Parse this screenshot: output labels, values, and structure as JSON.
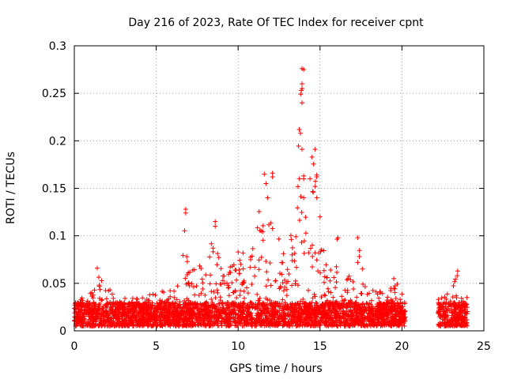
{
  "chart_data": {
    "type": "scatter",
    "title": "Day 216 of 2023, Rate Of TEC Index for receiver cpnt",
    "xlabel": "GPS time / hours",
    "ylabel": "ROTI / TECUs",
    "xlim": [
      0,
      25
    ],
    "ylim": [
      0,
      0.3
    ],
    "xticks": [
      "0",
      "5",
      "10",
      "15",
      "20",
      "25"
    ],
    "yticks": [
      "0",
      "0.05",
      "0.1",
      "0.15",
      "0.2",
      "0.25",
      "0.3"
    ],
    "grid": true,
    "legend": "none",
    "marker": "plus",
    "color": "#ff0000",
    "envelope": {
      "x": [
        0.0,
        0.5,
        1.0,
        1.3,
        1.5,
        2.0,
        3.0,
        4.0,
        4.6,
        5.0,
        5.5,
        6.0,
        6.5,
        6.8,
        7.0,
        7.5,
        8.0,
        8.6,
        9.0,
        9.5,
        10.0,
        10.5,
        11.0,
        11.6,
        12.0,
        12.3,
        12.8,
        13.3,
        13.9,
        14.2,
        14.5,
        14.8,
        15.0,
        15.5,
        16.0,
        16.5,
        17.0,
        17.3,
        17.8,
        18.5,
        19.0,
        19.5,
        19.8,
        20.2
      ],
      "y": [
        0.03,
        0.035,
        0.04,
        0.05,
        0.065,
        0.045,
        0.038,
        0.035,
        0.04,
        0.038,
        0.045,
        0.048,
        0.058,
        0.128,
        0.06,
        0.082,
        0.075,
        0.115,
        0.06,
        0.075,
        0.082,
        0.082,
        0.095,
        0.165,
        0.166,
        0.11,
        0.085,
        0.11,
        0.276,
        0.14,
        0.191,
        0.164,
        0.12,
        0.06,
        0.1,
        0.063,
        0.055,
        0.098,
        0.05,
        0.045,
        0.04,
        0.048,
        0.05,
        0.03
      ],
      "x2": [
        22.2,
        22.6,
        23.0,
        23.3,
        23.6,
        24.0
      ],
      "y2": [
        0.035,
        0.05,
        0.045,
        0.063,
        0.045,
        0.035
      ]
    },
    "coverage": [
      [
        0.0,
        20.2
      ],
      [
        22.2,
        24.0
      ]
    ],
    "baseline": [
      0.005,
      0.03
    ],
    "peaks": [
      {
        "x": 1.4,
        "y": 0.066
      },
      {
        "x": 6.8,
        "y": 0.128
      },
      {
        "x": 6.8,
        "y": 0.124
      },
      {
        "x": 8.6,
        "y": 0.115
      },
      {
        "x": 8.6,
        "y": 0.11
      },
      {
        "x": 10.0,
        "y": 0.083
      },
      {
        "x": 10.3,
        "y": 0.082
      },
      {
        "x": 11.6,
        "y": 0.165
      },
      {
        "x": 11.7,
        "y": 0.155
      },
      {
        "x": 12.1,
        "y": 0.166
      },
      {
        "x": 12.1,
        "y": 0.162
      },
      {
        "x": 11.8,
        "y": 0.14
      },
      {
        "x": 13.9,
        "y": 0.276
      },
      {
        "x": 14.0,
        "y": 0.275
      },
      {
        "x": 13.9,
        "y": 0.26
      },
      {
        "x": 13.9,
        "y": 0.255
      },
      {
        "x": 13.9,
        "y": 0.24
      },
      {
        "x": 13.8,
        "y": 0.208
      },
      {
        "x": 13.9,
        "y": 0.191
      },
      {
        "x": 14.0,
        "y": 0.163
      },
      {
        "x": 14.0,
        "y": 0.16
      },
      {
        "x": 14.0,
        "y": 0.14
      },
      {
        "x": 14.7,
        "y": 0.191
      },
      {
        "x": 14.8,
        "y": 0.164
      },
      {
        "x": 14.8,
        "y": 0.162
      },
      {
        "x": 14.7,
        "y": 0.152
      },
      {
        "x": 14.8,
        "y": 0.14
      },
      {
        "x": 15.0,
        "y": 0.12
      },
      {
        "x": 16.1,
        "y": 0.098
      },
      {
        "x": 17.3,
        "y": 0.098
      },
      {
        "x": 17.3,
        "y": 0.072
      },
      {
        "x": 19.5,
        "y": 0.055
      },
      {
        "x": 23.4,
        "y": 0.063
      }
    ]
  }
}
